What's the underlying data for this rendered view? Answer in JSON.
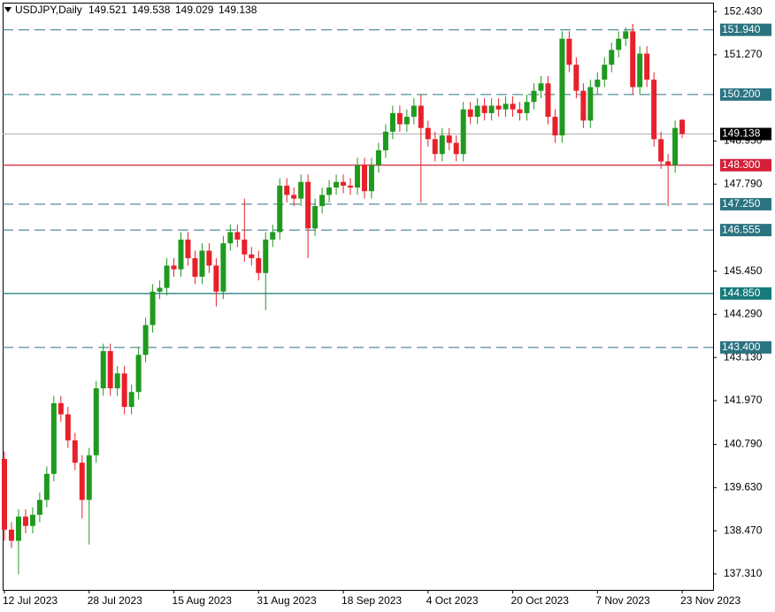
{
  "chart_data": {
    "type": "candlestick",
    "symbol": "USDJPY,Daily",
    "categories": [
      "12 Jul 2023",
      null,
      null,
      null,
      null,
      null,
      null,
      null,
      null,
      null,
      null,
      null,
      "28 Jul 2023",
      null,
      null,
      null,
      null,
      null,
      null,
      null,
      null,
      null,
      null,
      null,
      "15 Aug 2023",
      null,
      null,
      null,
      null,
      null,
      null,
      null,
      null,
      null,
      null,
      null,
      "31 Aug 2023",
      null,
      null,
      null,
      null,
      null,
      null,
      null,
      null,
      null,
      null,
      null,
      "18 Sep 2023",
      null,
      null,
      null,
      null,
      null,
      null,
      null,
      null,
      null,
      null,
      null,
      "4 Oct 2023",
      null,
      null,
      null,
      null,
      null,
      null,
      null,
      null,
      null,
      null,
      null,
      "20 Oct 2023",
      null,
      null,
      null,
      null,
      null,
      null,
      null,
      null,
      null,
      null,
      null,
      "7 Nov 2023",
      null,
      null,
      null,
      null,
      null,
      null,
      null,
      null,
      null,
      null,
      null,
      "23 Nov 2023"
    ],
    "open": [
      140.4,
      138.5,
      138.2,
      138.85,
      138.6,
      138.9,
      139.3,
      140.0,
      141.9,
      141.6,
      140.9,
      140.3,
      139.3,
      140.5,
      142.3,
      143.3,
      142.3,
      142.7,
      141.8,
      142.2,
      143.2,
      144.0,
      144.9,
      145.0,
      145.6,
      145.5,
      146.3,
      145.8,
      145.3,
      146.0,
      145.6,
      144.9,
      146.2,
      146.5,
      146.3,
      145.9,
      145.8,
      145.4,
      146.3,
      146.5,
      147.75,
      147.5,
      147.4,
      147.85,
      146.6,
      147.2,
      147.5,
      147.7,
      147.85,
      147.75,
      147.7,
      148.3,
      147.6,
      148.3,
      148.7,
      149.2,
      149.7,
      149.4,
      149.6,
      149.9,
      149.3,
      149.0,
      148.6,
      149.1,
      148.9,
      148.6,
      149.8,
      149.6,
      149.9,
      149.7,
      149.9,
      149.8,
      149.95,
      149.8,
      149.7,
      150.0,
      150.3,
      150.5,
      149.6,
      149.1,
      151.7,
      151.0,
      150.3,
      149.5,
      150.4,
      150.6,
      151.0,
      151.4,
      151.7,
      151.9,
      150.4,
      151.3,
      150.6,
      149.0,
      148.4,
      148.3,
      149.521
    ],
    "high": [
      140.6,
      138.7,
      139.05,
      139.05,
      139.1,
      139.5,
      140.2,
      142.1,
      142.1,
      141.8,
      141.1,
      140.5,
      140.7,
      142.5,
      143.5,
      143.5,
      142.9,
      142.9,
      142.4,
      143.4,
      144.2,
      145.1,
      145.2,
      145.8,
      145.8,
      146.5,
      146.5,
      146.0,
      146.2,
      146.2,
      145.8,
      146.4,
      146.7,
      146.7,
      147.4,
      146.1,
      146.0,
      146.5,
      146.7,
      147.95,
      147.95,
      147.7,
      148.05,
      148.05,
      147.4,
      147.7,
      147.9,
      148.05,
      148.05,
      147.95,
      148.5,
      148.5,
      148.5,
      148.9,
      149.4,
      149.9,
      149.9,
      149.8,
      150.1,
      150.2,
      149.5,
      149.2,
      149.3,
      149.3,
      149.1,
      150.0,
      150.0,
      150.1,
      150.1,
      150.1,
      150.1,
      150.15,
      150.15,
      150.0,
      150.2,
      150.5,
      150.7,
      150.7,
      149.8,
      151.9,
      151.9,
      151.2,
      150.5,
      150.6,
      150.8,
      151.2,
      151.6,
      151.9,
      152.0,
      152.1,
      151.5,
      151.5,
      150.8,
      149.2,
      148.6,
      149.5,
      149.538
    ],
    "low": [
      138.2,
      138.0,
      137.3,
      138.4,
      138.4,
      138.7,
      139.1,
      139.8,
      141.4,
      140.7,
      140.1,
      138.8,
      138.1,
      140.3,
      142.1,
      142.1,
      142.1,
      141.6,
      141.6,
      142.0,
      143.0,
      143.8,
      144.7,
      144.8,
      145.3,
      145.3,
      145.6,
      145.1,
      145.1,
      145.4,
      144.5,
      144.7,
      146.0,
      146.1,
      145.7,
      145.6,
      145.2,
      144.4,
      146.1,
      146.3,
      147.3,
      147.2,
      147.2,
      145.8,
      146.4,
      147.0,
      147.3,
      147.5,
      147.55,
      147.5,
      147.5,
      147.4,
      147.4,
      148.1,
      148.5,
      149.0,
      149.2,
      149.2,
      149.4,
      147.3,
      148.8,
      148.4,
      148.4,
      148.7,
      148.4,
      148.4,
      149.4,
      149.4,
      149.5,
      149.5,
      149.6,
      149.6,
      149.6,
      149.5,
      149.5,
      149.8,
      150.1,
      149.4,
      148.9,
      148.9,
      150.8,
      150.1,
      149.3,
      149.3,
      150.2,
      150.4,
      150.8,
      151.2,
      151.5,
      150.2,
      150.2,
      150.4,
      148.8,
      148.2,
      147.2,
      148.1,
      149.029
    ],
    "close": [
      138.5,
      138.2,
      138.85,
      138.6,
      138.9,
      139.3,
      140.0,
      141.9,
      141.6,
      140.9,
      140.3,
      139.3,
      140.5,
      142.3,
      143.3,
      142.3,
      142.7,
      141.8,
      142.2,
      143.2,
      144.0,
      144.9,
      145.0,
      145.6,
      145.5,
      146.3,
      145.8,
      145.3,
      146.0,
      145.6,
      144.9,
      146.2,
      146.5,
      146.3,
      145.9,
      145.8,
      145.4,
      146.3,
      146.5,
      147.75,
      147.5,
      147.4,
      147.85,
      146.6,
      147.2,
      147.5,
      147.7,
      147.85,
      147.75,
      147.7,
      148.3,
      147.6,
      148.3,
      148.7,
      149.2,
      149.7,
      149.4,
      149.6,
      149.9,
      149.3,
      149.0,
      148.6,
      149.1,
      148.9,
      148.6,
      149.8,
      149.6,
      149.9,
      149.7,
      149.9,
      149.8,
      149.95,
      149.8,
      149.7,
      150.0,
      150.3,
      150.5,
      149.6,
      149.1,
      151.7,
      151.0,
      150.3,
      149.5,
      150.4,
      150.6,
      151.0,
      151.4,
      151.7,
      151.9,
      150.4,
      151.3,
      150.6,
      149.0,
      148.4,
      148.3,
      149.3,
      149.138
    ],
    "up_color": "#1f9a1f",
    "down_color": "#e8202a",
    "ylim": [
      136.88,
      152.67
    ],
    "yticks": [
      {
        "value": 152.43,
        "label": "152.430"
      },
      {
        "value": 151.27,
        "label": "151.270"
      },
      {
        "value": 148.95,
        "label": "148.950"
      },
      {
        "value": 147.79,
        "label": "147.790"
      },
      {
        "value": 145.45,
        "label": "145.450"
      },
      {
        "value": 144.29,
        "label": "144.290"
      },
      {
        "value": 143.13,
        "label": "143.130"
      },
      {
        "value": 141.97,
        "label": "141.970"
      },
      {
        "value": 140.79,
        "label": "140.790"
      },
      {
        "value": 139.63,
        "label": "139.630"
      },
      {
        "value": 138.47,
        "label": "138.470"
      },
      {
        "value": 137.31,
        "label": "137.310"
      }
    ],
    "current_price_color": "#000000",
    "levels": [
      {
        "value": 151.94,
        "label": "151.940",
        "color": "#2a7380",
        "dashed": true
      },
      {
        "value": 150.2,
        "label": "150.200",
        "color": "#2a7380",
        "dashed": true
      },
      {
        "value": 148.3,
        "label": "148.300",
        "color": "#d42038",
        "dashed": false
      },
      {
        "value": 147.25,
        "label": "147.250",
        "color": "#2a7380",
        "dashed": true
      },
      {
        "value": 146.555,
        "label": "146.555",
        "color": "#2a7380",
        "dashed": true
      },
      {
        "value": 144.85,
        "label": "144.850",
        "color": "#16797a",
        "dashed": false
      },
      {
        "value": 143.4,
        "label": "143.400",
        "color": "#2a7380",
        "dashed": true
      }
    ]
  }
}
